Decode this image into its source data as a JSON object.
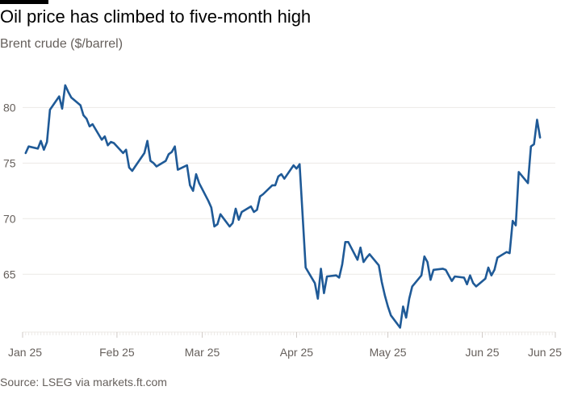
{
  "title": "Oil price has climbed to five-month high",
  "subtitle": "Brent crude ($/barrel)",
  "source": "Source: LSEG via markets.ft.com",
  "colors": {
    "line": "#1f5a97",
    "grid": "#ece9e6",
    "axis": "#cfcac6",
    "text": "#66605c"
  },
  "chart_data": {
    "type": "line",
    "title": "Oil price has climbed to five-month high",
    "subtitle": "Brent crude ($/barrel)",
    "xlabel": "",
    "ylabel": "",
    "ylim": [
      59.8,
      83
    ],
    "xlim": [
      "2025-01-01",
      "2025-06-25"
    ],
    "grid": true,
    "y_ticks": [
      65,
      70,
      75,
      80
    ],
    "x_ticks": [
      {
        "date": "2025-01-01",
        "label": "Jan 25"
      },
      {
        "date": "2025-02-01",
        "label": "Feb 25"
      },
      {
        "date": "2025-03-01",
        "label": "Mar 25"
      },
      {
        "date": "2025-04-01",
        "label": "Apr 25"
      },
      {
        "date": "2025-05-01",
        "label": "May 25"
      },
      {
        "date": "2025-06-01",
        "label": "Jun 25"
      },
      {
        "date": "2025-06-25",
        "label": "Jun 25"
      }
    ],
    "series": [
      {
        "points": [
          [
            "2025-01-02",
            75.9
          ],
          [
            "2025-01-03",
            76.5
          ],
          [
            "2025-01-06",
            76.3
          ],
          [
            "2025-01-07",
            77.0
          ],
          [
            "2025-01-08",
            76.2
          ],
          [
            "2025-01-09",
            76.9
          ],
          [
            "2025-01-10",
            79.8
          ],
          [
            "2025-01-13",
            81.0
          ],
          [
            "2025-01-14",
            79.9
          ],
          [
            "2025-01-15",
            82.0
          ],
          [
            "2025-01-16",
            81.4
          ],
          [
            "2025-01-17",
            80.9
          ],
          [
            "2025-01-20",
            80.2
          ],
          [
            "2025-01-21",
            79.3
          ],
          [
            "2025-01-22",
            79.0
          ],
          [
            "2025-01-23",
            78.3
          ],
          [
            "2025-01-24",
            78.5
          ],
          [
            "2025-01-27",
            77.1
          ],
          [
            "2025-01-28",
            77.4
          ],
          [
            "2025-01-29",
            76.6
          ],
          [
            "2025-01-30",
            76.9
          ],
          [
            "2025-01-31",
            76.8
          ],
          [
            "2025-02-03",
            75.9
          ],
          [
            "2025-02-04",
            76.2
          ],
          [
            "2025-02-05",
            74.6
          ],
          [
            "2025-02-06",
            74.3
          ],
          [
            "2025-02-07",
            74.7
          ],
          [
            "2025-02-10",
            75.9
          ],
          [
            "2025-02-11",
            77.0
          ],
          [
            "2025-02-12",
            75.2
          ],
          [
            "2025-02-13",
            75.0
          ],
          [
            "2025-02-14",
            74.7
          ],
          [
            "2025-02-17",
            75.2
          ],
          [
            "2025-02-18",
            75.8
          ],
          [
            "2025-02-19",
            76.0
          ],
          [
            "2025-02-20",
            76.5
          ],
          [
            "2025-02-21",
            74.4
          ],
          [
            "2025-02-24",
            74.8
          ],
          [
            "2025-02-25",
            73.0
          ],
          [
            "2025-02-26",
            72.5
          ],
          [
            "2025-02-27",
            74.0
          ],
          [
            "2025-02-28",
            73.2
          ],
          [
            "2025-03-03",
            71.6
          ],
          [
            "2025-03-04",
            71.0
          ],
          [
            "2025-03-05",
            69.3
          ],
          [
            "2025-03-06",
            69.5
          ],
          [
            "2025-03-07",
            70.4
          ],
          [
            "2025-03-10",
            69.3
          ],
          [
            "2025-03-11",
            69.6
          ],
          [
            "2025-03-12",
            70.9
          ],
          [
            "2025-03-13",
            69.9
          ],
          [
            "2025-03-14",
            70.6
          ],
          [
            "2025-03-17",
            71.1
          ],
          [
            "2025-03-18",
            70.6
          ],
          [
            "2025-03-19",
            70.8
          ],
          [
            "2025-03-20",
            72.0
          ],
          [
            "2025-03-21",
            72.2
          ],
          [
            "2025-03-24",
            73.0
          ],
          [
            "2025-03-25",
            73.0
          ],
          [
            "2025-03-26",
            73.8
          ],
          [
            "2025-03-27",
            74.0
          ],
          [
            "2025-03-28",
            73.6
          ],
          [
            "2025-03-31",
            74.8
          ],
          [
            "2025-04-01",
            74.5
          ],
          [
            "2025-04-02",
            74.9
          ],
          [
            "2025-04-03",
            70.2
          ],
          [
            "2025-04-04",
            65.6
          ],
          [
            "2025-04-07",
            64.2
          ],
          [
            "2025-04-08",
            62.8
          ],
          [
            "2025-04-09",
            65.5
          ],
          [
            "2025-04-10",
            63.3
          ],
          [
            "2025-04-11",
            64.8
          ],
          [
            "2025-04-14",
            64.9
          ],
          [
            "2025-04-15",
            64.7
          ],
          [
            "2025-04-16",
            65.9
          ],
          [
            "2025-04-17",
            67.9
          ],
          [
            "2025-04-18",
            67.9
          ],
          [
            "2025-04-21",
            66.3
          ],
          [
            "2025-04-22",
            67.4
          ],
          [
            "2025-04-23",
            66.1
          ],
          [
            "2025-04-24",
            66.5
          ],
          [
            "2025-04-25",
            66.8
          ],
          [
            "2025-04-28",
            65.8
          ],
          [
            "2025-04-29",
            64.3
          ],
          [
            "2025-04-30",
            63.1
          ],
          [
            "2025-05-01",
            62.1
          ],
          [
            "2025-05-02",
            61.3
          ],
          [
            "2025-05-05",
            60.2
          ],
          [
            "2025-05-06",
            62.1
          ],
          [
            "2025-05-07",
            61.1
          ],
          [
            "2025-05-08",
            62.8
          ],
          [
            "2025-05-09",
            63.9
          ],
          [
            "2025-05-12",
            64.9
          ],
          [
            "2025-05-13",
            66.6
          ],
          [
            "2025-05-14",
            66.1
          ],
          [
            "2025-05-15",
            64.5
          ],
          [
            "2025-05-16",
            65.4
          ],
          [
            "2025-05-19",
            65.5
          ],
          [
            "2025-05-20",
            65.4
          ],
          [
            "2025-05-21",
            64.9
          ],
          [
            "2025-05-22",
            64.4
          ],
          [
            "2025-05-23",
            64.8
          ],
          [
            "2025-05-26",
            64.7
          ],
          [
            "2025-05-27",
            64.1
          ],
          [
            "2025-05-28",
            64.9
          ],
          [
            "2025-05-29",
            64.2
          ],
          [
            "2025-05-30",
            63.9
          ],
          [
            "2025-06-02",
            64.6
          ],
          [
            "2025-06-03",
            65.6
          ],
          [
            "2025-06-04",
            64.9
          ],
          [
            "2025-06-05",
            65.4
          ],
          [
            "2025-06-06",
            66.5
          ],
          [
            "2025-06-09",
            67.0
          ],
          [
            "2025-06-10",
            66.9
          ],
          [
            "2025-06-11",
            69.8
          ],
          [
            "2025-06-12",
            69.4
          ],
          [
            "2025-06-13",
            74.2
          ],
          [
            "2025-06-16",
            73.2
          ],
          [
            "2025-06-17",
            76.5
          ],
          [
            "2025-06-18",
            76.7
          ],
          [
            "2025-06-19",
            78.9
          ],
          [
            "2025-06-20",
            77.3
          ]
        ]
      }
    ]
  }
}
